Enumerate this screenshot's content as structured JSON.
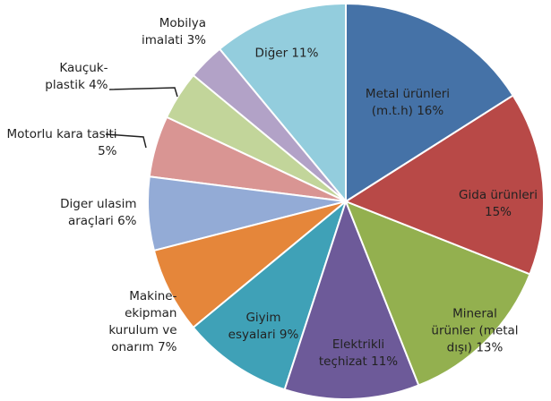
{
  "chart_data": {
    "type": "pie",
    "categories": [
      "Metal ürünleri (m.t.h)",
      "Gida ürünleri",
      "Mineral ürünler (metal dışı)",
      "Elektrikli teçhizat",
      "Giyim esyalari",
      "Makine-ekipman kurulum ve onarım",
      "Diger ulasim araçlari",
      "Motorlu kara tasiti",
      "Kauçuk-plastik",
      "Mobilya imalati",
      "Diğer"
    ],
    "values": [
      16,
      15,
      13,
      11,
      9,
      7,
      6,
      5,
      4,
      3,
      11
    ],
    "value_labels": [
      "16%",
      "15%",
      "13%",
      "11%",
      "9%",
      "7%",
      "6%",
      "5%",
      "4%",
      "3%",
      "11%"
    ],
    "colors": [
      "#4572a7",
      "#b84947",
      "#93b04f",
      "#6d5a99",
      "#3fa1b7",
      "#e5863a",
      "#93abd6",
      "#d99593",
      "#c2d59a",
      "#b2a2c7",
      "#93cddd"
    ]
  }
}
